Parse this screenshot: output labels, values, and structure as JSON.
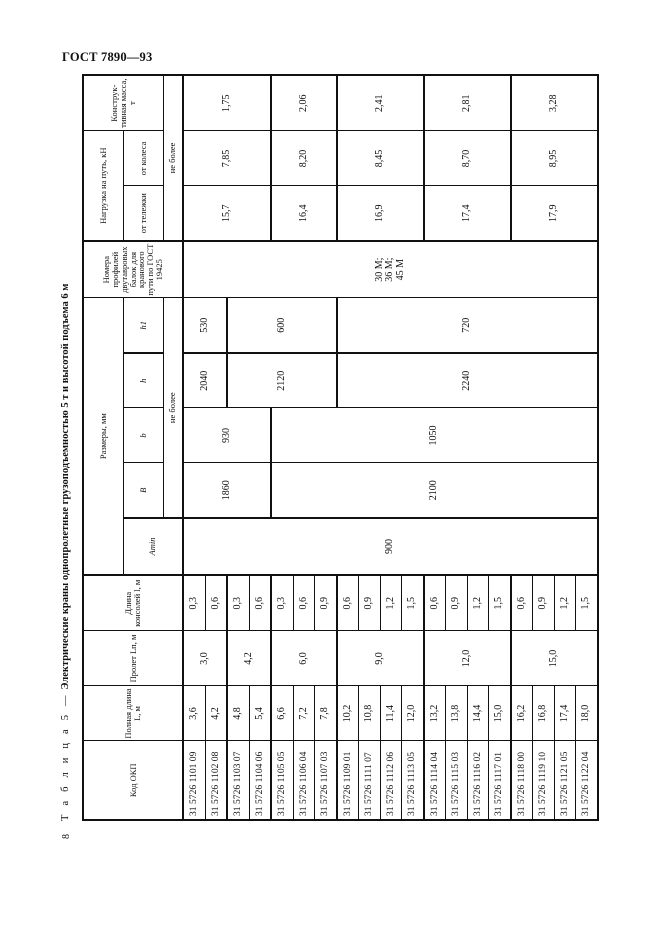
{
  "document": {
    "header": "ГОСТ 7890—93",
    "page_number": "8",
    "table_prefix": "Т а б л и ц а 5 —",
    "table_title": "Электрические краны однопролетные грузоподъемностью 5 т и высотой подъема 6 м"
  },
  "table": {
    "headers": {
      "code": "Код ОКП",
      "full_length": "Полная длина L, м",
      "span": "Пролет Lп, м",
      "console": "Длина консолей l, м",
      "dimensions": "Размеры, мм",
      "a_min": "Amin",
      "B": "B",
      "b": "b",
      "h": "h",
      "h1": "h1",
      "max_note_dims": "не более",
      "profiles": "Номера профилей двутавровых балок для кранового пути по ГОСТ 19425",
      "load": "Нагрузка на путь, кН",
      "load_trolley": "от тележки",
      "load_wheel": "от колеса",
      "mass": "Конструк-тивная масса, т",
      "max_note_load": "не более"
    },
    "rows": [
      {
        "code": "31 5726 1101 09",
        "full_length": "3,6",
        "console": "0,3"
      },
      {
        "code": "31 5726 1102 08",
        "full_length": "4,2",
        "console": "0,6"
      },
      {
        "code": "31 5726 1103 07",
        "full_length": "4,8",
        "console": "0,3"
      },
      {
        "code": "31 5726 1104 06",
        "full_length": "5,4",
        "console": "0,6"
      },
      {
        "code": "31 5726 1105 05",
        "full_length": "6,6",
        "console": "0,3"
      },
      {
        "code": "31 5726 1106 04",
        "full_length": "7,2",
        "console": "0,6"
      },
      {
        "code": "31 5726 1107 03",
        "full_length": "7,8",
        "console": "0,9"
      },
      {
        "code": "31 5726 1109 01",
        "full_length": "10,2",
        "console": "0,6"
      },
      {
        "code": "31 5726 1111 07",
        "full_length": "10,8",
        "console": "0,9"
      },
      {
        "code": "31 5726 1112 06",
        "full_length": "11,4",
        "console": "1,2"
      },
      {
        "code": "31 5726 1113 05",
        "full_length": "12,0",
        "console": "1,5"
      },
      {
        "code": "31 5726 1114 04",
        "full_length": "13,2",
        "console": "0,6"
      },
      {
        "code": "31 5726 1115 03",
        "full_length": "13,8",
        "console": "0,9"
      },
      {
        "code": "31 5726 1116 02",
        "full_length": "14,4",
        "console": "1,2"
      },
      {
        "code": "31 5726 1117 01",
        "full_length": "15,0",
        "console": "1,5"
      },
      {
        "code": "31 5726 1118 00",
        "full_length": "16,2",
        "console": "0,6"
      },
      {
        "code": "31 5726 1119 10",
        "full_length": "16,8",
        "console": "0,9"
      },
      {
        "code": "31 5726 1121 05",
        "full_length": "17,4",
        "console": "1,2"
      },
      {
        "code": "31 5726 1122 04",
        "full_length": "18,0",
        "console": "1,5"
      }
    ],
    "merged": {
      "span": [
        {
          "value": "3,0",
          "rows": 2
        },
        {
          "value": "4,2",
          "rows": 2
        },
        {
          "value": "6,0",
          "rows": 3
        },
        {
          "value": "9,0",
          "rows": 4
        },
        {
          "value": "12,0",
          "rows": 4
        },
        {
          "value": "15,0",
          "rows": 4
        }
      ],
      "a_min": [
        {
          "value": "900",
          "rows": 19
        }
      ],
      "B": [
        {
          "value": "1860",
          "rows": 4
        },
        {
          "value": "2100",
          "rows": 15
        }
      ],
      "b": [
        {
          "value": "930",
          "rows": 4
        },
        {
          "value": "1050",
          "rows": 15
        }
      ],
      "h": [
        {
          "value": "2040",
          "rows": 2
        },
        {
          "value": "2120",
          "rows": 5
        },
        {
          "value": "2240",
          "rows": 12
        }
      ],
      "h1": [
        {
          "value": "530",
          "rows": 2
        },
        {
          "value": "600",
          "rows": 5
        },
        {
          "value": "720",
          "rows": 12
        }
      ],
      "profiles": [
        {
          "value": "30 М;\n36 М;\n45 М",
          "rows": 19
        }
      ],
      "load_trolley": [
        {
          "value": "15,7",
          "rows": 4
        },
        {
          "value": "16,4",
          "rows": 3
        },
        {
          "value": "16,9",
          "rows": 4
        },
        {
          "value": "17,4",
          "rows": 4
        },
        {
          "value": "17,9",
          "rows": 4
        }
      ],
      "load_wheel": [
        {
          "value": "7,85",
          "rows": 4
        },
        {
          "value": "8,20",
          "rows": 3
        },
        {
          "value": "8,45",
          "rows": 4
        },
        {
          "value": "8,70",
          "rows": 4
        },
        {
          "value": "8,95",
          "rows": 4
        }
      ],
      "mass": [
        {
          "value": "1,75",
          "rows": 4
        },
        {
          "value": "2,06",
          "rows": 3
        },
        {
          "value": "2,41",
          "rows": 4
        },
        {
          "value": "2,81",
          "rows": 4
        },
        {
          "value": "3,28",
          "rows": 4
        }
      ]
    }
  }
}
